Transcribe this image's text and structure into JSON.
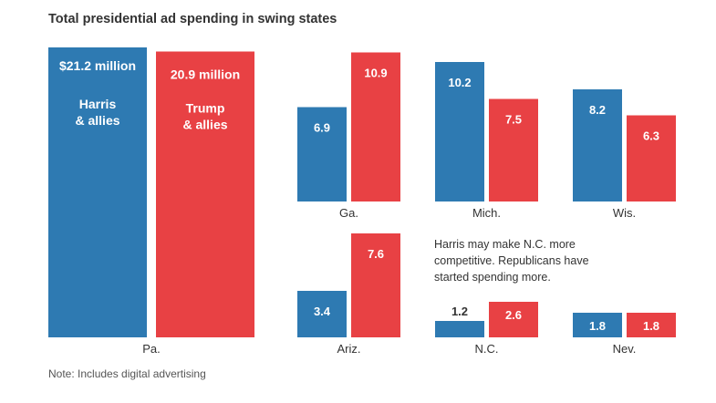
{
  "chart_data": {
    "type": "bar",
    "title": "Total presidential ad spending in swing states",
    "unit": "million USD",
    "series": [
      {
        "name": "Harris & allies",
        "color": "#2e7ab2"
      },
      {
        "name": "Trump & allies",
        "color": "#e84144"
      }
    ],
    "states": [
      {
        "name": "Pa.",
        "harris": 21.2,
        "trump": 20.9,
        "harris_label": "$21.2 million",
        "trump_label": "20.9 million",
        "harris_name": [
          "Harris",
          "& allies"
        ],
        "trump_name": [
          "Trump",
          "& allies"
        ]
      },
      {
        "name": "Ga.",
        "harris": 6.9,
        "trump": 10.9,
        "harris_label": "6.9",
        "trump_label": "10.9"
      },
      {
        "name": "Mich.",
        "harris": 10.2,
        "trump": 7.5,
        "harris_label": "10.2",
        "trump_label": "7.5"
      },
      {
        "name": "Wis.",
        "harris": 8.2,
        "trump": 6.3,
        "harris_label": "8.2",
        "trump_label": "6.3"
      },
      {
        "name": "Ariz.",
        "harris": 3.4,
        "trump": 7.6,
        "harris_label": "3.4",
        "trump_label": "7.6"
      },
      {
        "name": "N.C.",
        "harris": 1.2,
        "trump": 2.6,
        "harris_label": "1.2",
        "trump_label": "2.6"
      },
      {
        "name": "Nev.",
        "harris": 1.8,
        "trump": 1.8,
        "harris_label": "1.8",
        "trump_label": "1.8"
      }
    ],
    "annotation": "Harris may make N.C. more competitive. Republicans have started spending more.",
    "note": "Note: Includes digital advertising"
  }
}
